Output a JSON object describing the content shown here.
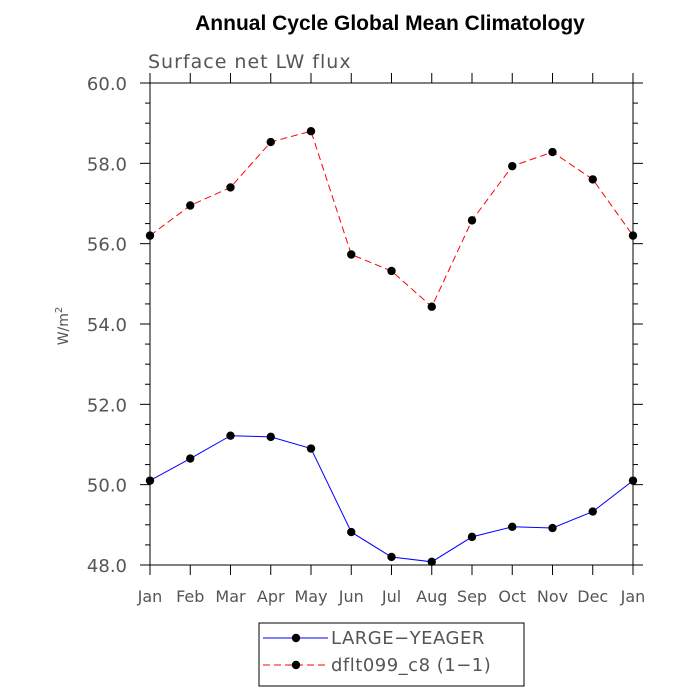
{
  "chart_data": {
    "type": "line",
    "title": "Annual Cycle Global Mean Climatology",
    "subtitle": "Surface net LW flux",
    "xlabel": "",
    "ylabel": "W/m",
    "ylabel_superscript": "2",
    "categories": [
      "Jan",
      "Feb",
      "Mar",
      "Apr",
      "May",
      "Jun",
      "Jul",
      "Aug",
      "Sep",
      "Oct",
      "Nov",
      "Dec",
      "Jan"
    ],
    "ylim": [
      48.0,
      60.0
    ],
    "yticks": [
      "48.0",
      "50.0",
      "52.0",
      "54.0",
      "56.0",
      "58.0",
      "60.0"
    ],
    "grid": false,
    "legend_position": "bottom",
    "series": [
      {
        "name": "LARGE−YEAGER",
        "color": "#0000ff",
        "line_style": "solid",
        "marker": "filled-circle",
        "values": [
          50.1,
          50.65,
          51.22,
          51.19,
          50.9,
          48.82,
          48.2,
          48.08,
          48.7,
          48.95,
          48.92,
          49.33,
          50.1
        ]
      },
      {
        "name": "dflt099_c8 (1−1)",
        "color": "#ff0000",
        "line_style": "dashed",
        "marker": "filled-circle",
        "values": [
          56.2,
          56.95,
          57.4,
          58.53,
          58.8,
          55.73,
          55.32,
          54.43,
          56.58,
          57.93,
          58.28,
          57.6,
          56.2
        ]
      }
    ]
  }
}
